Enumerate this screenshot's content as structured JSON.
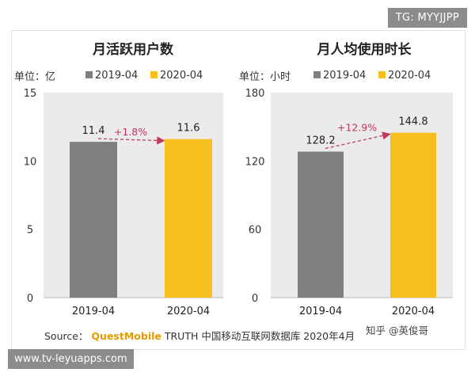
{
  "watermark_tag": "TG: MYYJJPP",
  "watermark_url": "www.tv-leyuapps.com",
  "source": {
    "prefix": "Source：",
    "brand": "QuestMobile",
    "rest": "TRUTH 中国移动互联网数据库 2020年4月"
  },
  "credit": "知乎 @英俊哥",
  "colors": {
    "bar_2019": "#7f7f7f",
    "bar_2020": "#f5bf1e",
    "growth": "#c0395b",
    "plot_bg": "#ebebeb"
  },
  "chart_data": [
    {
      "type": "bar",
      "title": "月活跃用户数",
      "unit_label": "单位：亿",
      "categories": [
        "2019-04",
        "2020-04"
      ],
      "values": [
        11.4,
        11.6
      ],
      "value_labels": [
        "11.4",
        "11.6"
      ],
      "legend": [
        "2019-04",
        "2020-04"
      ],
      "yticks": [
        "0",
        "5",
        "10",
        "15"
      ],
      "ylim": [
        0,
        15
      ],
      "growth_label": "+1.8%"
    },
    {
      "type": "bar",
      "title": "月人均使用时长",
      "unit_label": "单位：小时",
      "categories": [
        "2019-04",
        "2020-04"
      ],
      "values": [
        128.2,
        144.8
      ],
      "value_labels": [
        "128.2",
        "144.8"
      ],
      "legend": [
        "2019-04",
        "2020-04"
      ],
      "yticks": [
        "0",
        "60",
        "120",
        "180"
      ],
      "ylim": [
        0,
        180
      ],
      "growth_label": "+12.9%"
    }
  ]
}
